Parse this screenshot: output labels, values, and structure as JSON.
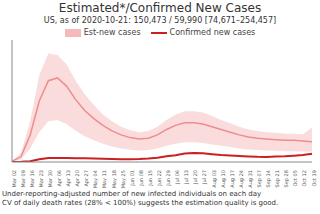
{
  "chart_data": {
    "type": "line",
    "title": "Estimated*/Confirmed New Cases",
    "subtitle": "US, as of 2020-10-21: 150,473 / 59,990 [74,671–254,457]",
    "annotations": [
      "Under-reporting-adjusted number of new infected individuals on each day",
      "CV of daily death rates (28% < 100%) suggests the estimation quality is good."
    ],
    "categories": [
      "Mar 02",
      "Mar 09",
      "Mar 16",
      "Mar 23",
      "Mar 30",
      "Apr 06",
      "Apr 13",
      "Apr 20",
      "Apr 27",
      "May 04",
      "May 11",
      "May 18",
      "May 25",
      "Jun 01",
      "Jun 08",
      "Jun 15",
      "Jun 22",
      "Jun 29",
      "Jul 06",
      "Jul 13",
      "Jul 20",
      "Jul 27",
      "Aug 03",
      "Aug 10",
      "Aug 17",
      "Aug 24",
      "Aug 31",
      "Sep 07",
      "Sep 14",
      "Sep 21",
      "Sep 28",
      "Oct 05",
      "Oct 12",
      "Oct 19"
    ],
    "series": [
      {
        "name": "Est-new cases",
        "color": "#f08c8c",
        "values": [
          5000,
          40000,
          200000,
          450000,
          600000,
          620000,
          560000,
          460000,
          380000,
          320000,
          270000,
          230000,
          200000,
          180000,
          170000,
          175000,
          200000,
          240000,
          270000,
          290000,
          290000,
          280000,
          260000,
          240000,
          220000,
          200000,
          185000,
          175000,
          170000,
          165000,
          160000,
          160000,
          155000,
          150000
        ],
        "lower": [
          2000,
          20000,
          100000,
          220000,
          300000,
          310000,
          280000,
          230000,
          190000,
          160000,
          135000,
          115000,
          100000,
          90000,
          85000,
          88000,
          100000,
          120000,
          135000,
          145000,
          145000,
          140000,
          130000,
          120000,
          110000,
          100000,
          93000,
          88000,
          85000,
          83000,
          80000,
          80000,
          78000,
          75000
        ],
        "upper": [
          8000,
          68000,
          300000,
          640000,
          800000,
          790000,
          720000,
          600000,
          500000,
          420000,
          350000,
          300000,
          260000,
          235000,
          220000,
          228000,
          260000,
          310000,
          350000,
          375000,
          375000,
          365000,
          340000,
          310000,
          285000,
          260000,
          240000,
          228000,
          220000,
          215000,
          208000,
          208000,
          205000,
          254000
        ]
      },
      {
        "name": "Confirmed new cases",
        "color": "#cc1f1f",
        "values": [
          0,
          1000,
          5000,
          20000,
          30000,
          30000,
          30000,
          28000,
          27000,
          26000,
          24000,
          22000,
          21000,
          21000,
          22000,
          25000,
          32000,
          42000,
          50000,
          62000,
          66000,
          65000,
          58000,
          52000,
          48000,
          44000,
          41000,
          38000,
          37000,
          40000,
          42000,
          47000,
          52000,
          60000
        ]
      }
    ],
    "ylim": [
      0,
      900000
    ],
    "tick_labels": "x",
    "grid": false,
    "legend": "top"
  }
}
